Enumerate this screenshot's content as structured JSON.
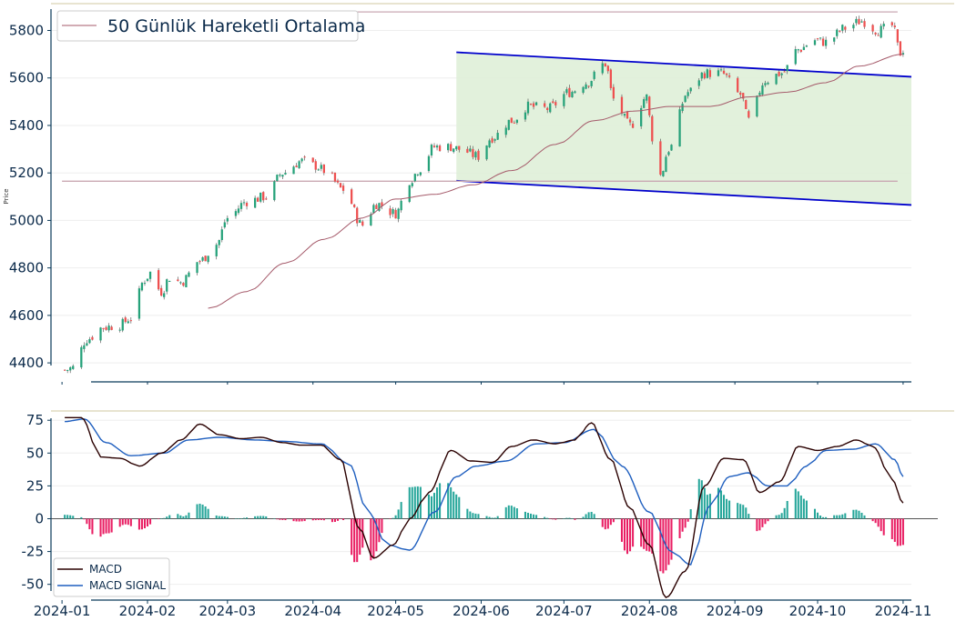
{
  "chart_data": [
    {
      "type": "candlestick",
      "ylabel": "Price",
      "legend": [
        "50 Günlük Hareketli Ortalama"
      ],
      "legend_position": "top-left",
      "ylim": [
        4320,
        5890
      ],
      "yticks": [
        4400,
        4600,
        4800,
        5000,
        5200,
        5400,
        5600,
        5800
      ],
      "xlim": [
        "2023-12-28",
        "2024-11-04"
      ],
      "colors": {
        "up": "#26a27a",
        "down": "#ee5050",
        "ma": "#a55a6a",
        "channel": "#0000cc",
        "channel_fill": "#dff0d8",
        "hline": "#caa9b3"
      },
      "price_anchors": [
        [
          "2024-01-02",
          4370
        ],
        [
          "2024-01-05",
          4380
        ],
        [
          "2024-01-10",
          4500
        ],
        [
          "2024-01-16",
          4550
        ],
        [
          "2024-01-22",
          4560
        ],
        [
          "2024-01-26",
          4590
        ],
        [
          "2024-01-31",
          4750
        ],
        [
          "2024-02-02",
          4780
        ],
        [
          "2024-02-06",
          4700
        ],
        [
          "2024-02-09",
          4760
        ],
        [
          "2024-02-13",
          4740
        ],
        [
          "2024-02-20",
          4830
        ],
        [
          "2024-02-26",
          4900
        ],
        [
          "2024-03-01",
          5010
        ],
        [
          "2024-03-08",
          5080
        ],
        [
          "2024-03-15",
          5100
        ],
        [
          "2024-03-21",
          5200
        ],
        [
          "2024-03-28",
          5250
        ],
        [
          "2024-04-02",
          5230
        ],
        [
          "2024-04-05",
          5210
        ],
        [
          "2024-04-12",
          5130
        ],
        [
          "2024-04-19",
          4980
        ],
        [
          "2024-04-24",
          5070
        ],
        [
          "2024-05-01",
          5030
        ],
        [
          "2024-05-06",
          5170
        ],
        [
          "2024-05-10",
          5220
        ],
        [
          "2024-05-15",
          5310
        ],
        [
          "2024-05-21",
          5310
        ],
        [
          "2024-05-24",
          5300
        ],
        [
          "2024-05-31",
          5270
        ],
        [
          "2024-06-05",
          5350
        ],
        [
          "2024-06-12",
          5420
        ],
        [
          "2024-06-18",
          5480
        ],
        [
          "2024-06-25",
          5470
        ],
        [
          "2024-07-03",
          5540
        ],
        [
          "2024-07-09",
          5580
        ],
        [
          "2024-07-16",
          5660
        ],
        [
          "2024-07-19",
          5510
        ],
        [
          "2024-07-25",
          5400
        ],
        [
          "2024-07-31",
          5520
        ],
        [
          "2024-08-02",
          5350
        ],
        [
          "2024-08-05",
          5190
        ],
        [
          "2024-08-08",
          5300
        ],
        [
          "2024-08-15",
          5540
        ],
        [
          "2024-08-21",
          5620
        ],
        [
          "2024-08-27",
          5620
        ],
        [
          "2024-09-03",
          5530
        ],
        [
          "2024-09-06",
          5420
        ],
        [
          "2024-09-12",
          5590
        ],
        [
          "2024-09-18",
          5620
        ],
        [
          "2024-09-24",
          5720
        ],
        [
          "2024-09-30",
          5760
        ],
        [
          "2024-10-04",
          5750
        ],
        [
          "2024-10-11",
          5810
        ],
        [
          "2024-10-17",
          5840
        ],
        [
          "2024-10-23",
          5800
        ],
        [
          "2024-10-28",
          5820
        ],
        [
          "2024-10-31",
          5705
        ],
        [
          "2024-11-01",
          5720
        ]
      ],
      "ma50_anchors": [
        [
          "2024-02-23",
          4630
        ],
        [
          "2024-03-08",
          4700
        ],
        [
          "2024-03-22",
          4820
        ],
        [
          "2024-04-05",
          4920
        ],
        [
          "2024-04-19",
          5010
        ],
        [
          "2024-05-01",
          5090
        ],
        [
          "2024-05-15",
          5110
        ],
        [
          "2024-05-29",
          5150
        ],
        [
          "2024-06-12",
          5210
        ],
        [
          "2024-06-28",
          5320
        ],
        [
          "2024-07-12",
          5420
        ],
        [
          "2024-07-26",
          5460
        ],
        [
          "2024-08-09",
          5480
        ],
        [
          "2024-08-23",
          5480
        ],
        [
          "2024-09-06",
          5520
        ],
        [
          "2024-09-20",
          5540
        ],
        [
          "2024-10-04",
          5580
        ],
        [
          "2024-10-16",
          5650
        ],
        [
          "2024-11-01",
          5700
        ]
      ],
      "horizontal_levels": [
        {
          "y": 5878,
          "from": "2024-02-23",
          "to": "2024-10-30"
        },
        {
          "y": 5165,
          "from": "2024-01-01",
          "to": "2024-10-30"
        }
      ],
      "channel": {
        "upper": [
          [
            "2024-05-23",
            5708
          ],
          [
            "2024-11-04",
            5605
          ]
        ],
        "lower": [
          [
            "2024-05-23",
            5167
          ],
          [
            "2024-11-04",
            5065
          ]
        ]
      }
    },
    {
      "type": "line+bar",
      "series": [
        {
          "name": "MACD",
          "color": "#2a0000"
        },
        {
          "name": "MACD SIGNAL",
          "color": "#1f5fbf"
        }
      ],
      "legend_position": "bottom-left",
      "ylim": [
        -62,
        80
      ],
      "yticks": [
        -50,
        -25,
        0,
        25,
        50,
        75
      ],
      "xticks": [
        "2024-01",
        "2024-02",
        "2024-03",
        "2024-04",
        "2024-05",
        "2024-06",
        "2024-07",
        "2024-08",
        "2024-09",
        "2024-10",
        "2024-11"
      ],
      "histogram_colors": {
        "positive": "#26a69a",
        "negative": "#e91e63"
      },
      "macd_anchors": [
        [
          "2024-01-02",
          77
        ],
        [
          "2024-01-08",
          77
        ],
        [
          "2024-01-15",
          47
        ],
        [
          "2024-01-22",
          46
        ],
        [
          "2024-01-29",
          40
        ],
        [
          "2024-02-06",
          50
        ],
        [
          "2024-02-13",
          60
        ],
        [
          "2024-02-20",
          72
        ],
        [
          "2024-02-27",
          64
        ],
        [
          "2024-03-06",
          61
        ],
        [
          "2024-03-13",
          62
        ],
        [
          "2024-03-21",
          58
        ],
        [
          "2024-03-28",
          56
        ],
        [
          "2024-04-04",
          56
        ],
        [
          "2024-04-11",
          45
        ],
        [
          "2024-04-18",
          -8
        ],
        [
          "2024-04-23",
          -30
        ],
        [
          "2024-04-30",
          -20
        ],
        [
          "2024-05-06",
          0
        ],
        [
          "2024-05-13",
          20
        ],
        [
          "2024-05-21",
          52
        ],
        [
          "2024-05-28",
          44
        ],
        [
          "2024-06-05",
          43
        ],
        [
          "2024-06-12",
          55
        ],
        [
          "2024-06-20",
          60
        ],
        [
          "2024-06-28",
          57
        ],
        [
          "2024-07-05",
          60
        ],
        [
          "2024-07-11",
          73
        ],
        [
          "2024-07-18",
          45
        ],
        [
          "2024-07-25",
          8
        ],
        [
          "2024-08-01",
          -20
        ],
        [
          "2024-08-07",
          -60
        ],
        [
          "2024-08-14",
          -40
        ],
        [
          "2024-08-21",
          25
        ],
        [
          "2024-08-28",
          46
        ],
        [
          "2024-09-04",
          45
        ],
        [
          "2024-09-10",
          20
        ],
        [
          "2024-09-17",
          28
        ],
        [
          "2024-09-24",
          55
        ],
        [
          "2024-10-01",
          52
        ],
        [
          "2024-10-08",
          55
        ],
        [
          "2024-10-15",
          60
        ],
        [
          "2024-10-21",
          55
        ],
        [
          "2024-10-28",
          30
        ],
        [
          "2024-11-01",
          12
        ]
      ],
      "signal_anchors": [
        [
          "2024-01-02",
          74
        ],
        [
          "2024-01-09",
          76
        ],
        [
          "2024-01-17",
          58
        ],
        [
          "2024-01-26",
          48
        ],
        [
          "2024-02-07",
          50
        ],
        [
          "2024-02-16",
          60
        ],
        [
          "2024-02-27",
          62
        ],
        [
          "2024-03-11",
          60
        ],
        [
          "2024-03-21",
          59
        ],
        [
          "2024-04-04",
          57
        ],
        [
          "2024-04-14",
          42
        ],
        [
          "2024-04-21",
          5
        ],
        [
          "2024-04-28",
          -20
        ],
        [
          "2024-05-06",
          -24
        ],
        [
          "2024-05-15",
          5
        ],
        [
          "2024-05-23",
          32
        ],
        [
          "2024-05-30",
          40
        ],
        [
          "2024-06-10",
          44
        ],
        [
          "2024-06-21",
          57
        ],
        [
          "2024-07-01",
          58
        ],
        [
          "2024-07-12",
          68
        ],
        [
          "2024-07-22",
          40
        ],
        [
          "2024-08-01",
          5
        ],
        [
          "2024-08-09",
          -25
        ],
        [
          "2024-08-16",
          -35
        ],
        [
          "2024-08-23",
          10
        ],
        [
          "2024-08-30",
          32
        ],
        [
          "2024-09-06",
          35
        ],
        [
          "2024-09-13",
          25
        ],
        [
          "2024-09-20",
          25
        ],
        [
          "2024-09-27",
          40
        ],
        [
          "2024-10-04",
          52
        ],
        [
          "2024-10-14",
          53
        ],
        [
          "2024-10-22",
          57
        ],
        [
          "2024-10-29",
          45
        ],
        [
          "2024-11-01",
          32
        ]
      ]
    }
  ]
}
